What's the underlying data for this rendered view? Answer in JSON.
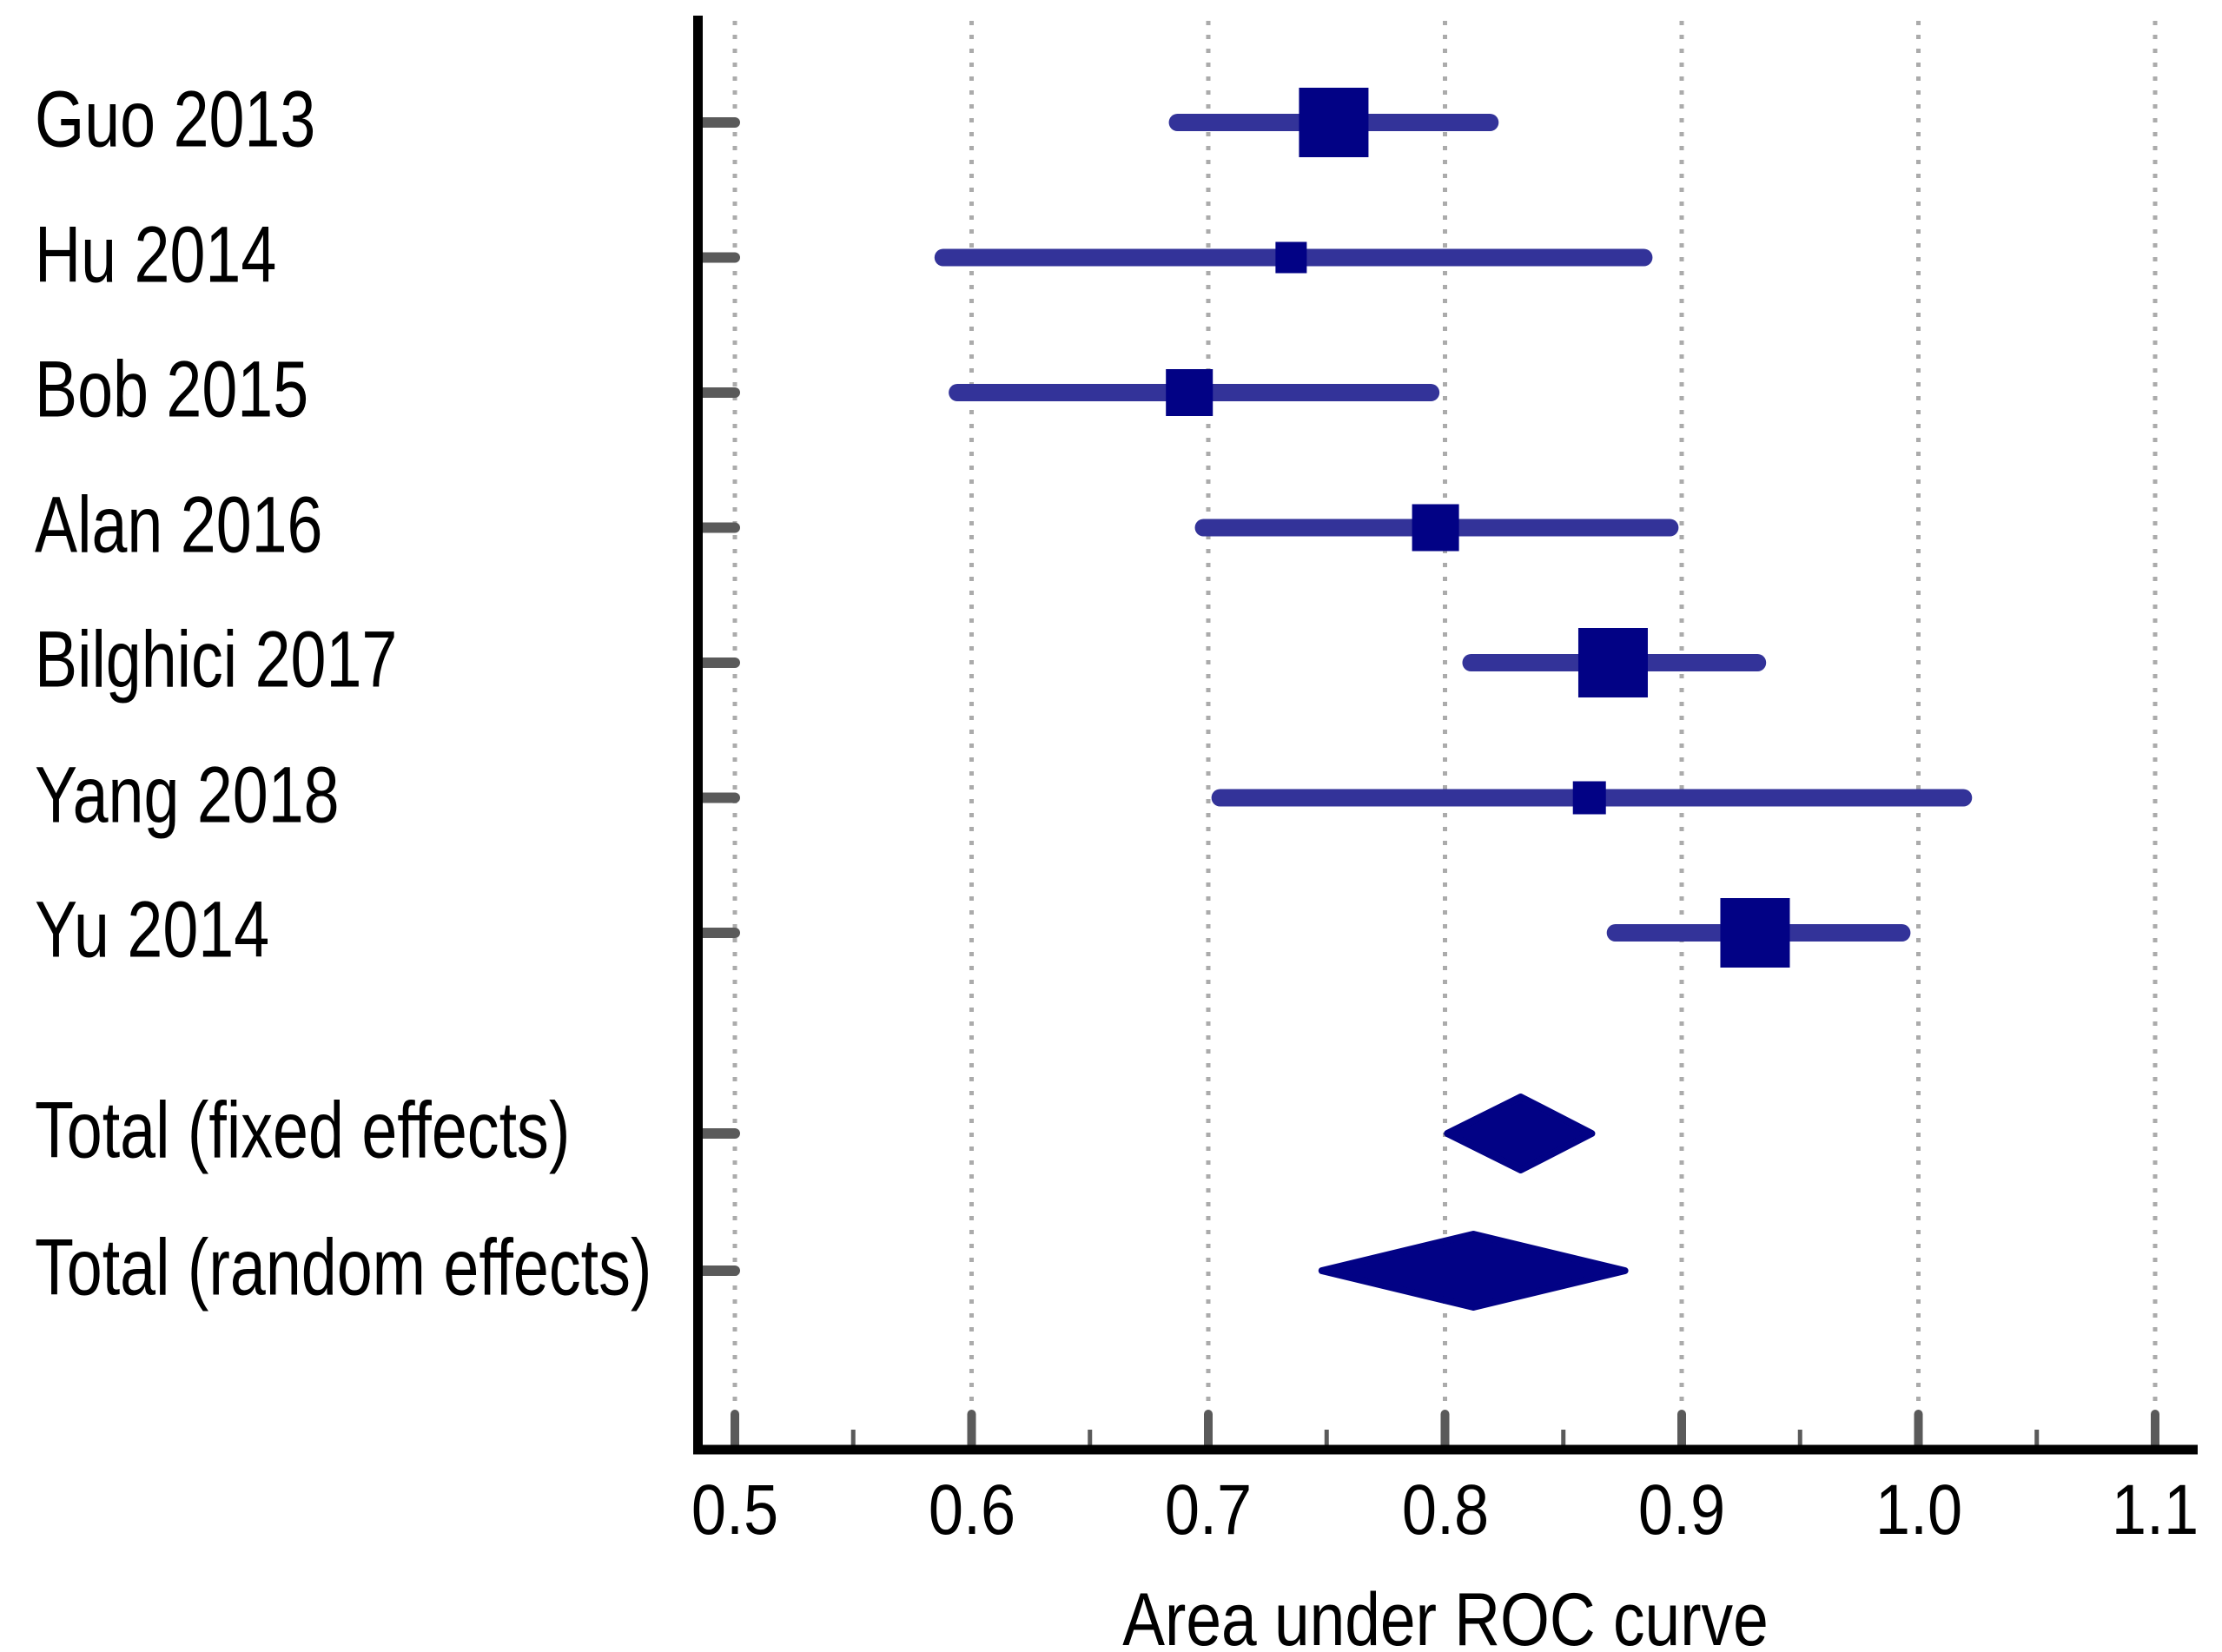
{
  "chart_data": {
    "type": "forest",
    "title": "",
    "xlabel": "Area under ROC curve",
    "x_axis": {
      "min": 0.5,
      "max": 1.1,
      "major_ticks": [
        0.5,
        0.6,
        0.7,
        0.8,
        0.9,
        1.0,
        1.1
      ],
      "major_tick_labels": [
        "0.5",
        "0.6",
        "0.7",
        "0.8",
        "0.9",
        "1.0",
        "1.1"
      ],
      "minor_ticks": [
        0.55,
        0.65,
        0.75,
        0.85,
        0.95,
        1.05
      ],
      "gridlines": "dotted-vertical-at-major-ticks"
    },
    "studies": [
      {
        "label": "Guo 2013",
        "auc": 0.753,
        "ci_low": 0.687,
        "ci_high": 0.819,
        "marker": "square",
        "marker_px": 80
      },
      {
        "label": "Hu 2014",
        "auc": 0.735,
        "ci_low": 0.588,
        "ci_high": 0.884,
        "marker": "square",
        "marker_px": 36
      },
      {
        "label": "Bob 2015",
        "auc": 0.692,
        "ci_low": 0.594,
        "ci_high": 0.794,
        "marker": "square",
        "marker_px": 54
      },
      {
        "label": "Alan 2016",
        "auc": 0.796,
        "ci_low": 0.698,
        "ci_high": 0.895,
        "marker": "square",
        "marker_px": 54
      },
      {
        "label": "Bilghici 2017",
        "auc": 0.871,
        "ci_low": 0.811,
        "ci_high": 0.932,
        "marker": "square",
        "marker_px": 80
      },
      {
        "label": "Yang 2018",
        "auc": 0.861,
        "ci_low": 0.705,
        "ci_high": 1.019,
        "marker": "square",
        "marker_px": 38
      },
      {
        "label": "Yu 2014",
        "auc": 0.931,
        "ci_low": 0.872,
        "ci_high": 0.993,
        "marker": "square",
        "marker_px": 80
      }
    ],
    "totals": [
      {
        "label": "Total (fixed effects)",
        "auc": 0.832,
        "ci_low": 0.801,
        "ci_high": 0.862,
        "marker": "diamond"
      },
      {
        "label": "Total (random effects)",
        "auc": 0.812,
        "ci_low": 0.748,
        "ci_high": 0.876,
        "marker": "diamond"
      }
    ],
    "legend": null,
    "colors": {
      "marker": "#020285",
      "ci_line": "#333399",
      "gridline": "#ABABAB",
      "tick": "#5A5A5A",
      "axis": "#000000",
      "text": "#000000",
      "background": "#FFFFFF"
    }
  }
}
